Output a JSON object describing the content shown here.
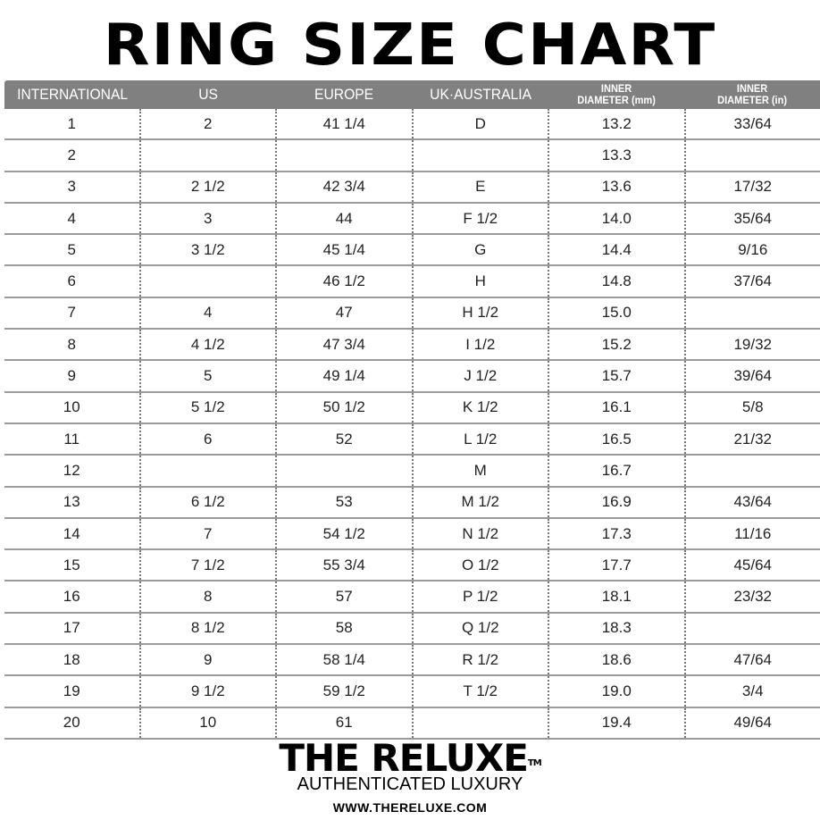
{
  "title": "RING SIZE CHART",
  "headers": [
    "INTERNATIONAL",
    "US",
    "EUROPE",
    "UK·AUSTRALIA",
    [
      "INNER",
      "DIAMETER (mm)"
    ],
    [
      "INNER",
      "DIAMETER (in)"
    ]
  ],
  "rows": [
    [
      "1",
      "2",
      "41 1/4",
      "D",
      "13.2",
      "33/64"
    ],
    [
      "2",
      "",
      "",
      "",
      "13.3",
      ""
    ],
    [
      "3",
      "2 1/2",
      "42 3/4",
      "E",
      "13.6",
      "17/32"
    ],
    [
      "4",
      "3",
      "44",
      "F 1/2",
      "14.0",
      "35/64"
    ],
    [
      "5",
      "3 1/2",
      "45 1/4",
      "G",
      "14.4",
      "9/16"
    ],
    [
      "6",
      "",
      "46 1/2",
      "H",
      "14.8",
      "37/64"
    ],
    [
      "7",
      "4",
      "47",
      "H 1/2",
      "15.0",
      ""
    ],
    [
      "8",
      "4 1/2",
      "47 3/4",
      "I 1/2",
      "15.2",
      "19/32"
    ],
    [
      "9",
      "5",
      "49 1/4",
      "J 1/2",
      "15.7",
      "39/64"
    ],
    [
      "10",
      "5 1/2",
      "50 1/2",
      "K 1/2",
      "16.1",
      "5/8"
    ],
    [
      "11",
      "6",
      "52",
      "L 1/2",
      "16.5",
      "21/32"
    ],
    [
      "12",
      "",
      "",
      "M",
      "16.7",
      ""
    ],
    [
      "13",
      "6 1/2",
      "53",
      "M 1/2",
      "16.9",
      "43/64"
    ],
    [
      "14",
      "7",
      "54 1/2",
      "N 1/2",
      "17.3",
      "11/16"
    ],
    [
      "15",
      "7 1/2",
      "55 3/4",
      "O 1/2",
      "17.7",
      "45/64"
    ],
    [
      "16",
      "8",
      "57",
      "P 1/2",
      "18.1",
      "23/32"
    ],
    [
      "17",
      "8 1/2",
      "58",
      "Q 1/2",
      "18.3",
      ""
    ],
    [
      "18",
      "9",
      "58 1/4",
      "R 1/2",
      "18.6",
      "47/64"
    ],
    [
      "19",
      "9 1/2",
      "59 1/2",
      "T 1/2",
      "19.0",
      "3/4"
    ],
    [
      "20",
      "10",
      "61",
      "",
      "19.4",
      "49/64"
    ]
  ],
  "brand": {
    "name": "THE RELUXE",
    "tm": "TM",
    "tagline": "AUTHENTICATED LUXURY",
    "url": "WWW.THERELUXE.COM"
  },
  "colors": {
    "header_bg": "#808080",
    "header_text": "#ffffff"
  }
}
